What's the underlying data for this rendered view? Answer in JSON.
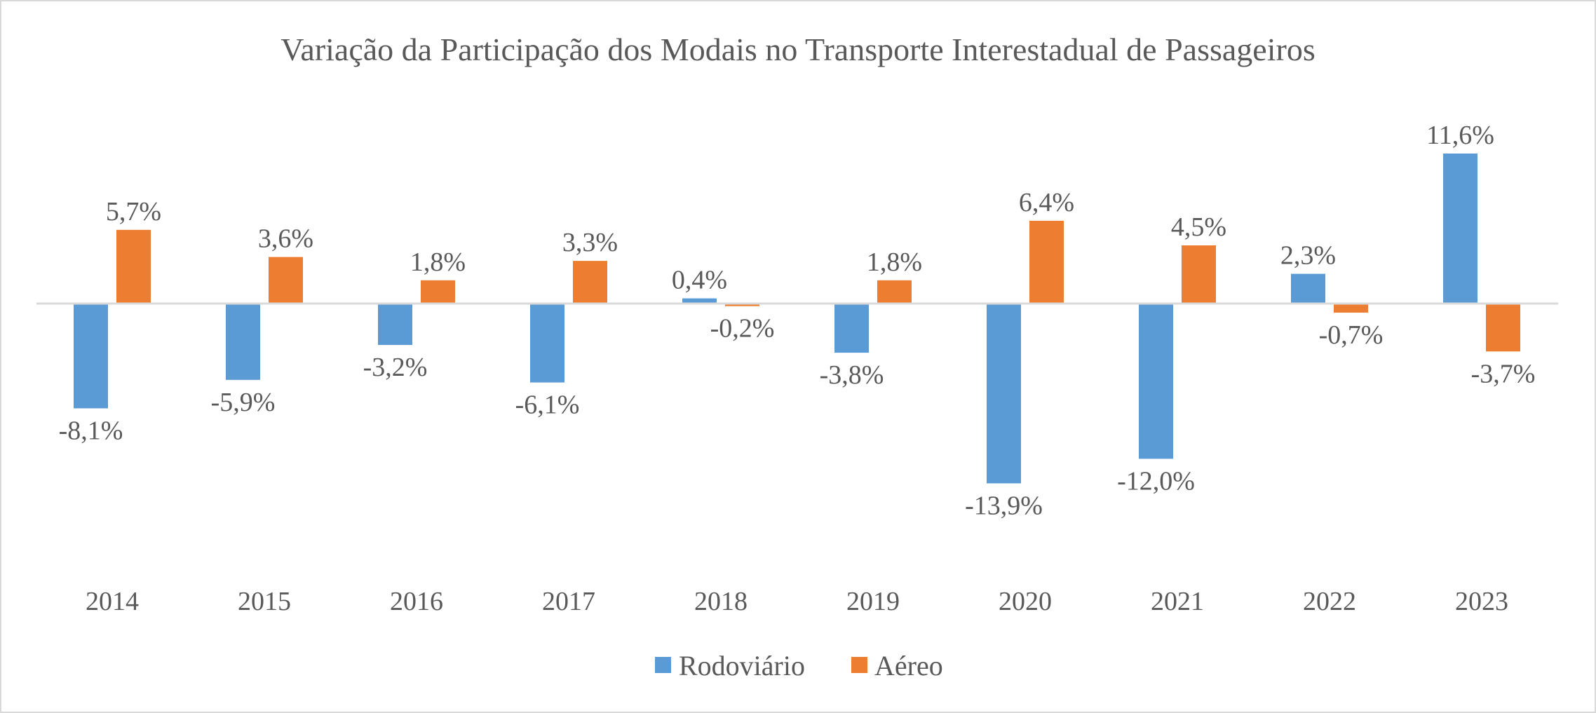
{
  "chart_data": {
    "type": "bar",
    "title": "Variação da Participação dos Modais no Transporte Interestadual de Passageiros",
    "categories": [
      "2014",
      "2015",
      "2016",
      "2017",
      "2018",
      "2019",
      "2020",
      "2021",
      "2022",
      "2023"
    ],
    "series": [
      {
        "name": "Rodoviário",
        "color": "#5b9bd5",
        "values": [
          -8.1,
          -5.9,
          -3.2,
          -6.1,
          0.4,
          -3.8,
          -13.9,
          -12.0,
          2.3,
          11.6
        ],
        "labels": [
          "-8,1%",
          "-5,9%",
          "-3,2%",
          "-6,1%",
          "0,4%",
          "-3,8%",
          "-13,9%",
          "-12,0%",
          "2,3%",
          "11,6%"
        ]
      },
      {
        "name": "Aéreo",
        "color": "#ed7d31",
        "values": [
          5.7,
          3.6,
          1.8,
          3.3,
          -0.2,
          1.8,
          6.4,
          4.5,
          -0.7,
          -3.7
        ],
        "labels": [
          "5,7%",
          "3,6%",
          "1,8%",
          "3,3%",
          "-0,2%",
          "1,8%",
          "6,4%",
          "4,5%",
          "-0,7%",
          "-3,7%"
        ]
      }
    ],
    "unit": "%",
    "legend": "bottom",
    "grid": false,
    "text_color": "#595959",
    "axis_color": "#d9d9d9"
  }
}
